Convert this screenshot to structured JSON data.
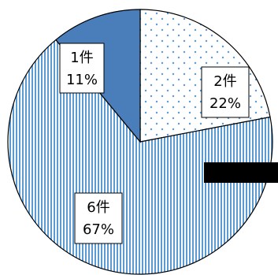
{
  "chart_data": {
    "type": "pie",
    "title": "",
    "slices": [
      {
        "count_label": "2件",
        "percent_label": "22%",
        "value": 22,
        "pattern": "dots",
        "color": "#5b9bd5"
      },
      {
        "count_label": "6件",
        "percent_label": "67%",
        "value": 67,
        "pattern": "vertical-stripes",
        "color": "#5b9bd5"
      },
      {
        "count_label": "1件",
        "percent_label": "11%",
        "value": 11,
        "pattern": "solid",
        "color": "#4a7ebb"
      }
    ],
    "redaction_bar": true,
    "colors": {
      "outline": "#000000",
      "background": "#ffffff"
    }
  }
}
